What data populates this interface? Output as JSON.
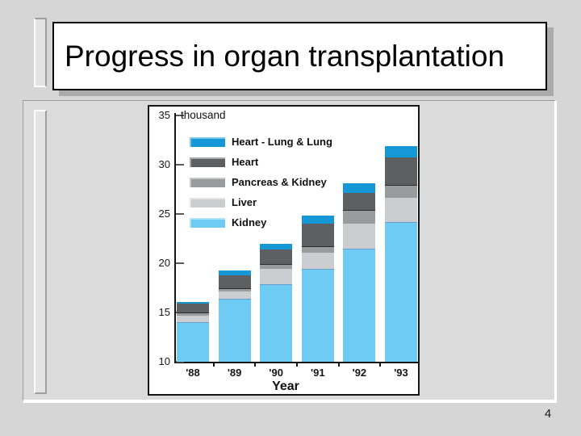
{
  "slide": {
    "title": "Progress in organ transplantation",
    "page_number": "4"
  },
  "chart_data": {
    "type": "bar",
    "stacked": true,
    "title": "",
    "unit_label": "thousand",
    "xlabel": "Year",
    "ylim": [
      10,
      35
    ],
    "yticks": [
      10,
      15,
      20,
      25,
      30,
      35
    ],
    "grid": false,
    "legend_position": "top-left-inside",
    "categories": [
      "'88",
      "'89",
      "'90",
      "'91",
      "'92",
      "'93"
    ],
    "series": [
      {
        "name": "Kidney",
        "color": "#6eccf4",
        "values": [
          14.0,
          16.4,
          17.9,
          19.4,
          21.5,
          24.2
        ]
      },
      {
        "name": "Liver",
        "color": "#cccdd0",
        "values": [
          0.7,
          0.7,
          1.5,
          1.7,
          2.5,
          2.4
        ]
      },
      {
        "name": "Pancreas & Kidney",
        "color": "#9a9b9d",
        "values": [
          0.2,
          0.3,
          0.4,
          0.5,
          1.3,
          1.3
        ]
      },
      {
        "name": "Heart",
        "color": "#5e5f61",
        "values": [
          1.0,
          1.4,
          1.6,
          2.4,
          1.8,
          2.8
        ]
      },
      {
        "name": "Heart - Lung & Lung",
        "color": "#1598d5",
        "values": [
          0.2,
          0.5,
          0.6,
          0.8,
          1.0,
          1.2
        ]
      }
    ],
    "totals": [
      16.1,
      19.3,
      22.0,
      24.8,
      28.1,
      31.9
    ],
    "legend_order_top_to_bottom": [
      "Heart - Lung & Lung",
      "Heart",
      "Pancreas & Kidney",
      "Liver",
      "Kidney"
    ]
  },
  "colors": {
    "slide_background": "#d6d6d6",
    "panel_background": "#dbdbdb",
    "chart_background": "#ffffff",
    "title_box_background": "#ffffff",
    "axis": "#161616"
  }
}
